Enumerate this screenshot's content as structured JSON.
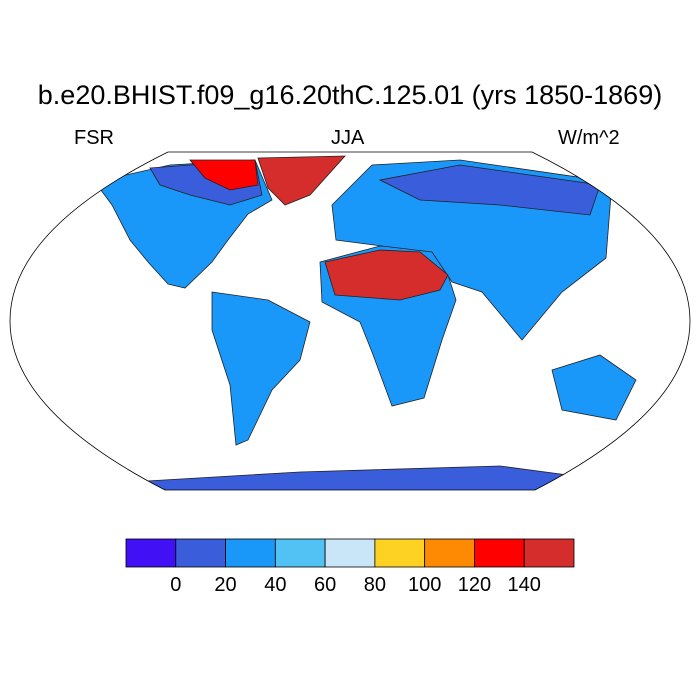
{
  "title": "b.e20.BHIST.f09_g16.20thC.125.01 (yrs 1850-1869)",
  "left_label": "FSR",
  "center_label": "JJA",
  "right_label": "W/m^2",
  "colorbar": {
    "colors": [
      "#4110f5",
      "#3a5ddc",
      "#1a98fa",
      "#52c1f4",
      "#c8e6f7",
      "#fdd223",
      "#fe8903",
      "#fe0000",
      "#d52c2c"
    ],
    "ticks": [
      "0",
      "20",
      "40",
      "60",
      "80",
      "100",
      "120",
      "140"
    ]
  }
}
